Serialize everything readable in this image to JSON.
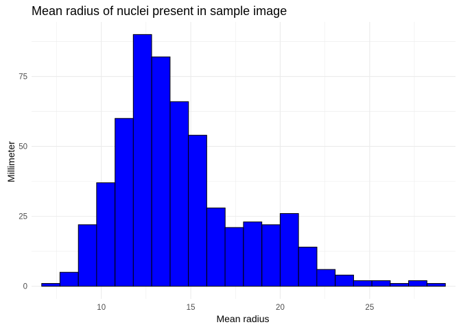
{
  "chart_data": {
    "type": "bar",
    "title": "Mean radius of nuclei present in sample image",
    "xlabel": "Mean radius",
    "ylabel": "Millimeter",
    "bin_width": 1.0256,
    "bins": [
      {
        "x": 7.18,
        "count": 1
      },
      {
        "x": 8.2,
        "count": 5
      },
      {
        "x": 9.23,
        "count": 22
      },
      {
        "x": 10.25,
        "count": 37
      },
      {
        "x": 11.28,
        "count": 60
      },
      {
        "x": 12.3,
        "count": 90
      },
      {
        "x": 13.33,
        "count": 82
      },
      {
        "x": 14.36,
        "count": 66
      },
      {
        "x": 15.38,
        "count": 54
      },
      {
        "x": 16.41,
        "count": 28
      },
      {
        "x": 17.43,
        "count": 21
      },
      {
        "x": 18.46,
        "count": 23
      },
      {
        "x": 19.49,
        "count": 22
      },
      {
        "x": 20.51,
        "count": 26
      },
      {
        "x": 21.54,
        "count": 14
      },
      {
        "x": 22.56,
        "count": 6
      },
      {
        "x": 23.59,
        "count": 4
      },
      {
        "x": 24.61,
        "count": 2
      },
      {
        "x": 25.64,
        "count": 2
      },
      {
        "x": 26.66,
        "count": 1
      },
      {
        "x": 27.69,
        "count": 2
      },
      {
        "x": 28.72,
        "count": 1
      }
    ],
    "x_ticks": [
      10,
      15,
      20,
      25
    ],
    "y_ticks": [
      0,
      25,
      50,
      75
    ],
    "xlim": [
      6.1,
      29.8
    ],
    "ylim": [
      -4.5,
      94.5
    ],
    "grid": true,
    "legend": "none",
    "colors": {
      "fill": "#0000ff",
      "outline": "#000000",
      "grid": "#ebebeb",
      "background": "#ffffff"
    }
  }
}
